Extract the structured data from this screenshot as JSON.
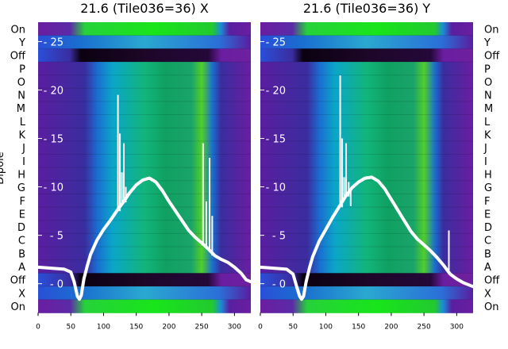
{
  "chart_data": [
    {
      "type": "heatmap",
      "title": "21.6 (Tile036=36) X",
      "ylabel": "Dipole",
      "row_labels": [
        "On",
        "Y",
        "Off",
        "P",
        "O",
        "N",
        "M",
        "L",
        "K",
        "J",
        "I",
        "H",
        "G",
        "F",
        "E",
        "D",
        "C",
        "B",
        "A",
        "Off",
        "X",
        "On"
      ],
      "x_ticks": [
        0,
        50,
        100,
        150,
        200,
        250,
        300
      ],
      "xlim": [
        0,
        325
      ],
      "overlay_ticks": [
        25,
        20,
        15,
        10,
        5,
        0
      ],
      "overlay_ylim": [
        -3,
        27
      ],
      "overlay_points": [
        [
          0,
          1.7
        ],
        [
          20,
          1.6
        ],
        [
          40,
          1.5
        ],
        [
          50,
          1.2
        ],
        [
          55,
          0.2
        ],
        [
          60,
          -1.3
        ],
        [
          63,
          -1.6
        ],
        [
          66,
          -1.2
        ],
        [
          70,
          0.5
        ],
        [
          75,
          1.8
        ],
        [
          80,
          3.0
        ],
        [
          90,
          4.5
        ],
        [
          100,
          5.6
        ],
        [
          110,
          6.5
        ],
        [
          120,
          7.5
        ],
        [
          130,
          8.4
        ],
        [
          140,
          9.4
        ],
        [
          150,
          10.2
        ],
        [
          160,
          10.7
        ],
        [
          170,
          10.9
        ],
        [
          180,
          10.5
        ],
        [
          190,
          9.6
        ],
        [
          200,
          8.5
        ],
        [
          210,
          7.5
        ],
        [
          220,
          6.5
        ],
        [
          230,
          5.5
        ],
        [
          240,
          4.8
        ],
        [
          250,
          4.2
        ],
        [
          260,
          3.6
        ],
        [
          270,
          2.9
        ],
        [
          280,
          2.5
        ],
        [
          290,
          2.2
        ],
        [
          300,
          1.7
        ],
        [
          310,
          1.1
        ],
        [
          318,
          0.4
        ],
        [
          325,
          0.2
        ]
      ],
      "overlay_spikes": [
        [
          122,
          19.5
        ],
        [
          125,
          15.5
        ],
        [
          128,
          11.5
        ],
        [
          131,
          14.5
        ],
        [
          134,
          10
        ],
        [
          252,
          14.5
        ],
        [
          257,
          8.5
        ],
        [
          262,
          13
        ],
        [
          266,
          7
        ]
      ]
    },
    {
      "type": "heatmap",
      "title": "21.6 (Tile036=36) Y",
      "row_labels": [
        "On",
        "Y",
        "Off",
        "P",
        "O",
        "N",
        "M",
        "L",
        "K",
        "J",
        "I",
        "H",
        "G",
        "F",
        "E",
        "D",
        "C",
        "B",
        "A",
        "Off",
        "X",
        "On"
      ],
      "x_ticks": [
        0,
        50,
        100,
        150,
        200,
        250,
        300
      ],
      "xlim": [
        0,
        325
      ],
      "overlay_ticks": [
        25,
        20,
        15,
        10,
        5,
        0
      ],
      "overlay_ylim": [
        -3,
        27
      ],
      "overlay_points": [
        [
          0,
          1.7
        ],
        [
          20,
          1.6
        ],
        [
          40,
          1.5
        ],
        [
          50,
          1.0
        ],
        [
          55,
          -0.2
        ],
        [
          60,
          -1.3
        ],
        [
          63,
          -1.6
        ],
        [
          66,
          -1.3
        ],
        [
          70,
          0.2
        ],
        [
          75,
          1.6
        ],
        [
          80,
          2.8
        ],
        [
          90,
          4.4
        ],
        [
          100,
          5.6
        ],
        [
          110,
          6.8
        ],
        [
          120,
          7.9
        ],
        [
          130,
          9.0
        ],
        [
          140,
          9.9
        ],
        [
          150,
          10.5
        ],
        [
          160,
          10.9
        ],
        [
          170,
          11.0
        ],
        [
          180,
          10.6
        ],
        [
          190,
          9.8
        ],
        [
          200,
          8.7
        ],
        [
          210,
          7.6
        ],
        [
          220,
          6.5
        ],
        [
          230,
          5.4
        ],
        [
          240,
          4.6
        ],
        [
          250,
          4.0
        ],
        [
          260,
          3.4
        ],
        [
          270,
          2.7
        ],
        [
          280,
          1.9
        ],
        [
          290,
          1.0
        ],
        [
          300,
          0.5
        ],
        [
          310,
          0.1
        ],
        [
          325,
          -0.3
        ]
      ],
      "overlay_spikes": [
        [
          122,
          21.5
        ],
        [
          125,
          15
        ],
        [
          128,
          11
        ],
        [
          131,
          14.5
        ],
        [
          135,
          10.5
        ],
        [
          138,
          8
        ],
        [
          288,
          5.5
        ]
      ]
    }
  ]
}
